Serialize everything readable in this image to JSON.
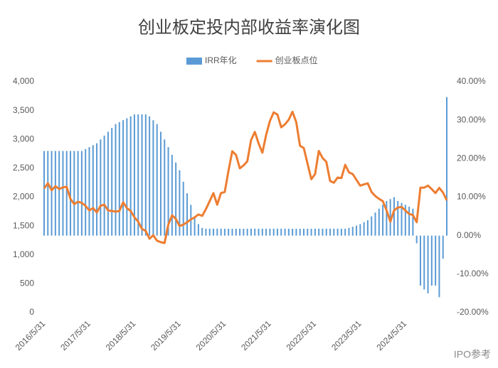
{
  "chart_data": {
    "type": "combo",
    "title": "创业板定投内部收益率演化图",
    "watermark": "IPO参考",
    "legend": "top",
    "categories": [
      "2016/5/31",
      null,
      null,
      null,
      null,
      null,
      null,
      null,
      null,
      null,
      null,
      null,
      "2017/5/31",
      null,
      null,
      null,
      null,
      null,
      null,
      null,
      null,
      null,
      null,
      null,
      "2018/5/31",
      null,
      null,
      null,
      null,
      null,
      null,
      null,
      null,
      null,
      null,
      null,
      "2019/5/31",
      null,
      null,
      null,
      null,
      null,
      null,
      null,
      null,
      null,
      null,
      null,
      "2020/5/31",
      null,
      null,
      null,
      null,
      null,
      null,
      null,
      null,
      null,
      null,
      null,
      "2021/5/31",
      null,
      null,
      null,
      null,
      null,
      null,
      null,
      null,
      null,
      null,
      null,
      "2022/5/31",
      null,
      null,
      null,
      null,
      null,
      null,
      null,
      null,
      null,
      null,
      null,
      "2023/5/31",
      null,
      null,
      null,
      null,
      null,
      null,
      null,
      null,
      null,
      null,
      null,
      "2024/5/31",
      null,
      null,
      null,
      null,
      null,
      null,
      null,
      null,
      null,
      null,
      null
    ],
    "series": [
      {
        "name": "IRR年化",
        "type": "bar",
        "axis": "y2",
        "color": "#5b9bd5",
        "values": [
          22,
          22,
          22,
          22,
          22,
          22,
          22,
          22,
          22,
          22,
          22,
          22.5,
          23,
          23.5,
          24,
          25,
          26,
          27,
          28,
          29,
          29.5,
          30,
          30.5,
          31,
          31.5,
          31.5,
          31.5,
          31.5,
          31,
          30,
          29,
          27,
          25,
          23,
          21,
          19,
          17,
          14,
          11,
          8,
          5,
          3,
          2,
          1.8,
          1.8,
          1.8,
          1.8,
          1.8,
          1.8,
          1.8,
          1.8,
          1.8,
          1.8,
          1.8,
          1.8,
          1.8,
          1.8,
          1.8,
          1.8,
          1.8,
          1.8,
          1.8,
          1.8,
          1.8,
          1.8,
          1.8,
          1.8,
          1.8,
          1.8,
          1.8,
          1.8,
          1.8,
          1.8,
          1.8,
          1.8,
          1.8,
          1.8,
          1.8,
          1.8,
          1.8,
          1.8,
          2,
          2.3,
          2.6,
          3,
          3.5,
          4,
          5,
          6,
          7,
          8,
          9,
          9.5,
          10,
          9,
          8.5,
          8,
          7.5,
          7,
          -2,
          -13,
          -14,
          -15,
          -13,
          -13,
          -16,
          -6,
          36
        ]
      },
      {
        "name": "创业板点位",
        "type": "line",
        "axis": "y",
        "color": "#ed7d31",
        "values": [
          2150,
          2240,
          2120,
          2190,
          2140,
          2170,
          2180,
          1970,
          1880,
          1920,
          1900,
          1850,
          1770,
          1810,
          1735,
          1850,
          1870,
          1770,
          1760,
          1750,
          1760,
          1910,
          1810,
          1760,
          1650,
          1575,
          1450,
          1415,
          1280,
          1340,
          1245,
          1220,
          1205,
          1525,
          1685,
          1625,
          1500,
          1525,
          1565,
          1615,
          1650,
          1700,
          1675,
          1795,
          1930,
          2070,
          1870,
          2070,
          2090,
          2460,
          2795,
          2730,
          2500,
          2550,
          2620,
          2990,
          3130,
          2930,
          2770,
          3080,
          3320,
          3470,
          3430,
          3210,
          3260,
          3340,
          3480,
          3300,
          2890,
          2850,
          2580,
          2310,
          2400,
          2800,
          2680,
          2610,
          2280,
          2250,
          2340,
          2330,
          2560,
          2430,
          2400,
          2300,
          2200,
          2220,
          2240,
          2090,
          2020,
          1970,
          1930,
          1770,
          1575,
          1770,
          1820,
          1830,
          1770,
          1710,
          1690,
          1565,
          2165,
          2165,
          2200,
          2140,
          2070,
          2160,
          2080,
          1945
        ]
      }
    ],
    "ylim": [
      0,
      4000
    ],
    "yticks": [
      0,
      500,
      {
        "value": 1000,
        "label": "1,000"
      },
      {
        "value": 1500,
        "label": "1,500"
      },
      {
        "value": 2000,
        "label": "2,000"
      },
      {
        "value": 2500,
        "label": "2,500"
      },
      {
        "value": 3000,
        "label": "3,000"
      },
      {
        "value": 3500,
        "label": "3,500"
      },
      {
        "value": 4000,
        "label": "4,000"
      }
    ],
    "y2lim": [
      -20,
      40
    ],
    "y2ticks": [
      {
        "value": -20,
        "label": "-20.00%"
      },
      {
        "value": -10,
        "label": "-10.00%"
      },
      {
        "value": 0,
        "label": "0.00%"
      },
      {
        "value": 10,
        "label": "10.00%"
      },
      {
        "value": 20,
        "label": "20.00%"
      },
      {
        "value": 30,
        "label": "30.00%"
      },
      {
        "value": 40,
        "label": "40.00%"
      }
    ]
  }
}
